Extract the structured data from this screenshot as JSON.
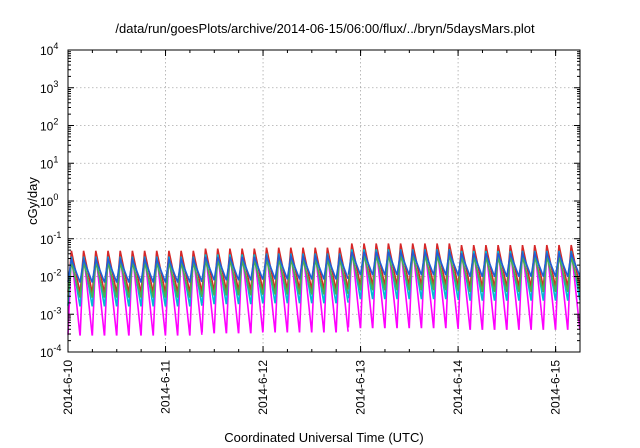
{
  "chart_data": {
    "type": "line",
    "title": "/data/run/goesPlots/archive/2014-06-15/06:00/flux/../bryn/5daysMars.plot",
    "xlabel": "Coordinated Universal Time (UTC)",
    "ylabel": "cGy/day",
    "y_scale": "log",
    "ylim": [
      0.0001,
      10000
    ],
    "xlim": [
      "2014-06-10T00:00",
      "2014-06-15T06:00"
    ],
    "grid": true,
    "y_ticks": [
      {
        "value": 0.0001,
        "base": "10",
        "exp": "-4"
      },
      {
        "value": 0.001,
        "base": "10",
        "exp": "-3"
      },
      {
        "value": 0.01,
        "base": "10",
        "exp": "-2"
      },
      {
        "value": 0.1,
        "base": "10",
        "exp": "-1"
      },
      {
        "value": 1,
        "base": "10",
        "exp": "0"
      },
      {
        "value": 10,
        "base": "10",
        "exp": "1"
      },
      {
        "value": 100,
        "base": "10",
        "exp": "2"
      },
      {
        "value": 1000,
        "base": "10",
        "exp": "3"
      },
      {
        "value": 10000,
        "base": "10",
        "exp": "4"
      }
    ],
    "x_ticks": [
      "2014-6-10",
      "2014-6-11",
      "2014-6-12",
      "2014-6-13",
      "2014-6-14",
      "2014-6-15"
    ],
    "period_hours": 3,
    "segments": [
      {
        "start": "2014-06-10T00:00",
        "end": "2014-06-11T09:00",
        "peak_top": 0.048
      },
      {
        "start": "2014-06-11T09:00",
        "end": "2014-06-12T00:00",
        "peak_top": 0.055
      },
      {
        "start": "2014-06-12T00:00",
        "end": "2014-06-12T21:00",
        "peak_top": 0.058
      },
      {
        "start": "2014-06-12T21:00",
        "end": "2014-06-14T00:00",
        "peak_top": 0.075
      },
      {
        "start": "2014-06-14T00:00",
        "end": "2014-06-15T06:00",
        "peak_top": 0.068
      }
    ],
    "series": [
      {
        "color": "#d62728",
        "peak_factor": 1.0,
        "min_factor": 0.08
      },
      {
        "color": "#ff00ff",
        "peak_factor": 0.85,
        "min_factor": 0.007
      },
      {
        "color": "#00bcd4",
        "peak_factor": 0.7,
        "min_factor": 0.05
      },
      {
        "color": "#1f5fd6",
        "peak_factor": 0.6,
        "min_factor": 0.25
      },
      {
        "color": "#4caf50",
        "peak_factor": 0.5,
        "min_factor": 0.12
      }
    ]
  }
}
